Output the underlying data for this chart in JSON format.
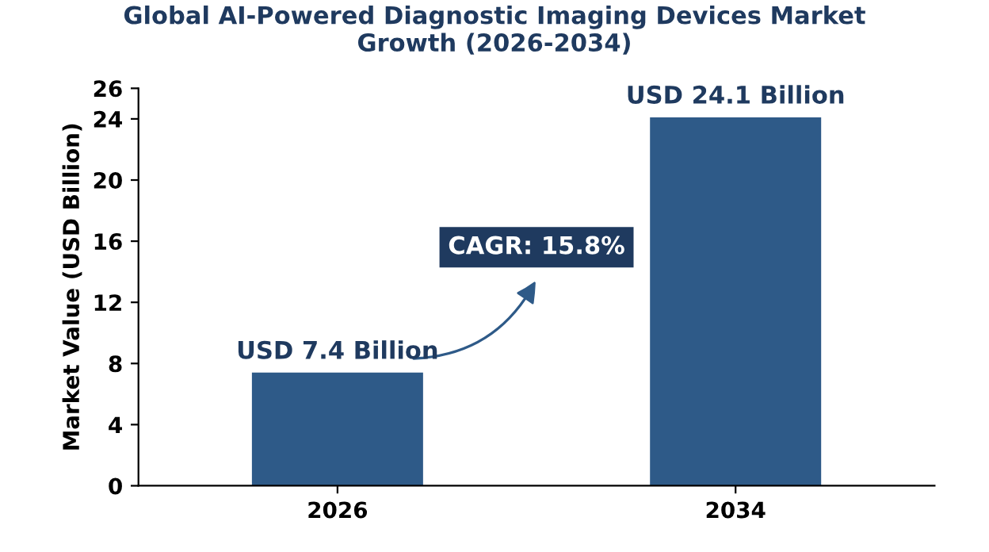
{
  "chart_data": {
    "type": "bar",
    "title": "Global AI-Powered Diagnostic Imaging Devices Market\nGrowth (2026-2034)",
    "ylabel": "Market Value (USD Billion)",
    "categories": [
      "2026",
      "2034"
    ],
    "values": [
      7.4,
      24.1
    ],
    "color": "#2e5a88",
    "value_labels": [
      "USD 7.4 Billion",
      "USD 24.1 Billion"
    ],
    "ylim": [
      0,
      26
    ],
    "yticks": [
      0,
      4,
      8,
      12,
      16,
      20,
      24,
      26
    ],
    "grid": false,
    "annotations": [
      "CAGR: 15.8%"
    ]
  }
}
